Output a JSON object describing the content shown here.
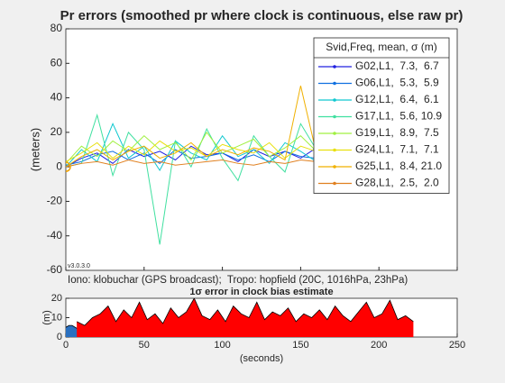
{
  "chart_data": [
    {
      "type": "line",
      "title": "Pr errors (smoothed pr where clock is continuous, else raw pr)",
      "ylabel": "(meters)",
      "legend_title": "Svid,Freq, mean, σ (m)",
      "legend": "upper right",
      "annotations": [
        "v3.0.3.0",
        "Iono: klobuchar (GPS broadcast);  Tropo: hopfield (20C, 1016hPa, 23hPa)"
      ],
      "x": [
        0,
        10,
        20,
        30,
        40,
        50,
        60,
        70,
        80,
        90,
        100,
        110,
        120,
        130,
        140,
        150,
        160,
        170,
        180,
        190,
        200,
        210,
        220
      ],
      "xlim": [
        0,
        250
      ],
      "xticks": [
        0,
        50,
        100,
        150,
        200,
        250
      ],
      "ylim": [
        -60,
        80
      ],
      "yticks": [
        -60,
        -40,
        -20,
        0,
        20,
        40,
        60,
        80
      ],
      "series": [
        {
          "name": "G02,L1,  7.3,  6.7",
          "color": "#2020e0",
          "values": [
            0,
            5,
            8,
            2,
            10,
            6,
            9,
            4,
            12,
            7,
            8,
            3,
            10,
            6,
            9,
            5,
            11,
            7,
            8,
            6,
            10,
            7,
            5
          ]
        },
        {
          "name": "G06,L1,  5.3,  5.9",
          "color": "#1070e0",
          "values": [
            1,
            3,
            7,
            9,
            4,
            8,
            2,
            10,
            5,
            6,
            8,
            4,
            7,
            3,
            9,
            6,
            5,
            8,
            4,
            7,
            6,
            5,
            6
          ]
        },
        {
          "name": "G12,L1,  6.4,  6.1",
          "color": "#10c8d0",
          "values": [
            0,
            10,
            3,
            25,
            5,
            12,
            -2,
            15,
            8,
            4,
            18,
            6,
            10,
            2,
            14,
            9,
            3,
            12,
            7,
            11,
            5,
            8,
            6
          ]
        },
        {
          "name": "G17,L1,  5.6, 10.9",
          "color": "#40e0a0",
          "values": [
            0,
            2,
            30,
            -5,
            20,
            10,
            -45,
            15,
            0,
            22,
            5,
            -8,
            18,
            6,
            -3,
            25,
            10,
            -5,
            12,
            20,
            8,
            -10,
            15
          ]
        },
        {
          "name": "G19,L1,  8.9,  7.5",
          "color": "#a0f040",
          "values": [
            2,
            12,
            6,
            15,
            9,
            18,
            10,
            14,
            4,
            20,
            8,
            12,
            16,
            6,
            11,
            18,
            9,
            13,
            5,
            15,
            10,
            7,
            12
          ]
        },
        {
          "name": "G24,L1,  7.1,  7.1",
          "color": "#e8e010",
          "values": [
            3,
            8,
            14,
            5,
            12,
            7,
            15,
            9,
            11,
            6,
            13,
            10,
            8,
            14,
            5,
            12,
            9,
            11,
            7,
            13,
            6,
            9,
            8
          ]
        },
        {
          "name": "G25,L1,  8.4, 21.0",
          "color": "#f0b000",
          "values": [
            0,
            6,
            10,
            4,
            9,
            12,
            5,
            8,
            14,
            6,
            10,
            7,
            11,
            9,
            4,
            47,
            8,
            6,
            12,
            5,
            9,
            10,
            7
          ]
        },
        {
          "name": "G28,L1,  2.5,  2.0",
          "color": "#e08020",
          "values": [
            0,
            2,
            3,
            1,
            4,
            2,
            3,
            1,
            2,
            3,
            4,
            2,
            1,
            3,
            2,
            4,
            3,
            2,
            1,
            3,
            2,
            3,
            2
          ]
        }
      ]
    },
    {
      "type": "area",
      "title": "1σ error in clock bias estimate",
      "ylabel": "(m)",
      "xlabel": "(seconds)",
      "xlim": [
        0,
        250
      ],
      "xticks": [
        0,
        50,
        100,
        150,
        200,
        250
      ],
      "ylim": [
        0,
        20
      ],
      "yticks": [
        0,
        10,
        20
      ],
      "series": [
        {
          "color": "#2a70c0",
          "x": [
            0,
            2,
            4,
            6,
            8
          ],
          "values": [
            5,
            6,
            6,
            5,
            4
          ]
        },
        {
          "color": "#ff0000",
          "x": [
            7,
            12,
            17,
            22,
            27,
            32,
            37,
            42,
            47,
            52,
            57,
            62,
            67,
            72,
            77,
            82,
            87,
            92,
            97,
            102,
            107,
            112,
            117,
            122,
            127,
            132,
            137,
            142,
            147,
            152,
            157,
            162,
            167,
            172,
            177,
            182,
            187,
            192,
            197,
            202,
            207,
            212,
            217,
            222
          ],
          "values": [
            8,
            6,
            10,
            12,
            16,
            8,
            14,
            10,
            18,
            9,
            12,
            7,
            15,
            10,
            13,
            20,
            11,
            9,
            14,
            8,
            16,
            12,
            10,
            18,
            9,
            13,
            11,
            15,
            8,
            12,
            10,
            14,
            9,
            16,
            11,
            8,
            13,
            18,
            10,
            12,
            19,
            9,
            11,
            8
          ]
        }
      ]
    }
  ]
}
